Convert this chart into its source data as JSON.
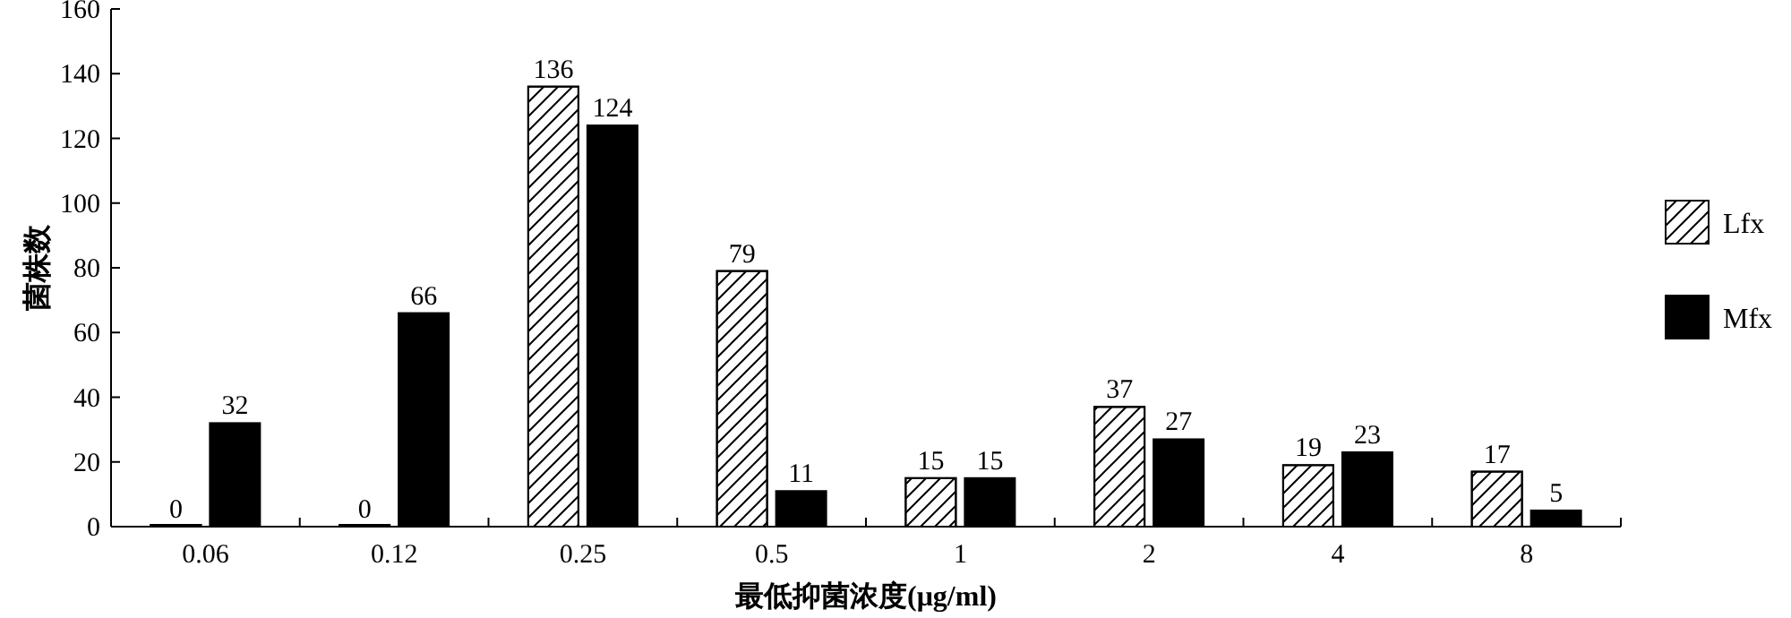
{
  "chart_data": {
    "type": "bar",
    "xlabel": "最低抑菌浓度(μg/ml)",
    "ylabel": "菌株数",
    "categories": [
      "0.06",
      "0.12",
      "0.25",
      "0.5",
      "1",
      "2",
      "4",
      "8"
    ],
    "series": [
      {
        "name": "Lfx",
        "color": "#ffffff",
        "values": [
          0,
          0,
          136,
          79,
          15,
          37,
          19,
          17
        ]
      },
      {
        "name": "Mfx",
        "color": "#000000",
        "values": [
          32,
          66,
          124,
          11,
          15,
          27,
          23,
          5
        ]
      }
    ],
    "ylim": [
      0,
      160
    ],
    "yticks": [
      0,
      20,
      40,
      60,
      80,
      100,
      120,
      140,
      160
    ],
    "data_labels": true,
    "legend": "right",
    "grid": false
  }
}
